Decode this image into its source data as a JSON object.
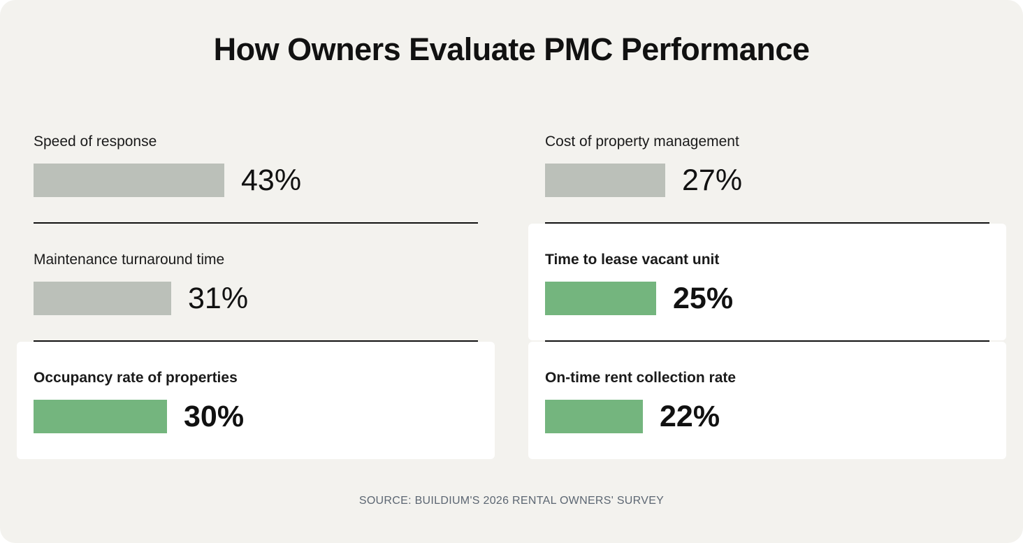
{
  "title": "How Owners Evaluate PMC Performance",
  "source": "SOURCE: BUILDIUM'S 2026 RENTAL OWNERS' SURVEY",
  "colors": {
    "background": "#f3f2ee",
    "highlight_panel": "#ffffff",
    "bar_default": "#bbc0b9",
    "bar_highlight": "#74b57e",
    "text": "#111111",
    "source_text": "#5c6672"
  },
  "chart_data": {
    "type": "bar",
    "title": "How Owners Evaluate PMC Performance",
    "categories": [
      "Speed of response",
      "Cost of property management",
      "Maintenance turnaround time",
      "Time to lease vacant unit",
      "Occupancy rate of properties",
      "On-time rent collection rate"
    ],
    "values": [
      43,
      27,
      31,
      25,
      30,
      22
    ],
    "value_labels": [
      "43%",
      "27%",
      "31%",
      "25%",
      "30%",
      "22%"
    ],
    "highlighted": [
      false,
      false,
      false,
      true,
      true,
      true
    ],
    "unit": "%",
    "layout": "two-column horizontal bars",
    "xlim": [
      0,
      100
    ],
    "legend": "none",
    "grid": false
  }
}
